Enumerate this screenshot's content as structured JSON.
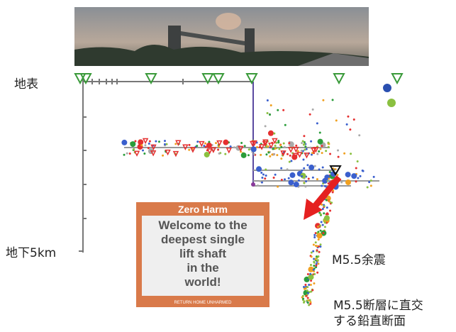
{
  "labels": {
    "surface": "地表",
    "depth": "地下5km",
    "aftershock": "M5.5余震",
    "section": [
      "M5.5断層に直交",
      "する鉛直断面"
    ]
  },
  "sign": {
    "title": "Zero Harm",
    "message": [
      "Welcome to the",
      "deepest single",
      "lift shaft",
      "in the",
      "world!"
    ],
    "footer": "RETURN HOME UNHARMED"
  }
}
